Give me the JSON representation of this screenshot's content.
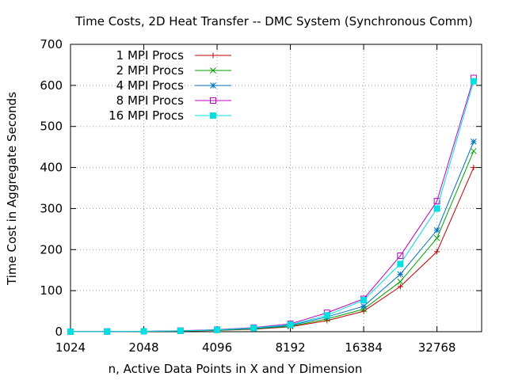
{
  "chart_data": {
    "type": "line",
    "title": "Time Costs, 2D Heat Transfer -- DMC System (Synchronous Comm)",
    "xlabel": "n, Active Data Points in X and Y Dimension",
    "ylabel": "Time Cost in Aggregate Seconds",
    "x_scale": "log2",
    "xlim": [
      1024,
      50000
    ],
    "ylim": [
      0,
      700
    ],
    "x_ticks": [
      1024,
      2048,
      4096,
      8192,
      16384,
      32768
    ],
    "x_tick_labels": [
      "1024",
      "2048",
      "4096",
      "8192",
      "16384",
      "32768"
    ],
    "y_ticks": [
      0,
      100,
      200,
      300,
      400,
      500,
      600,
      700
    ],
    "y_tick_labels": [
      "0",
      "100",
      "200",
      "300",
      "400",
      "500",
      "600",
      "700"
    ],
    "grid": true,
    "legend_position": "top-left",
    "x": [
      1024,
      1448,
      2048,
      2896,
      4096,
      5793,
      8192,
      11585,
      16384,
      23170,
      32768,
      46341
    ],
    "series": [
      {
        "name": "1 MPI Procs",
        "color": "#c00000",
        "marker": "plus",
        "values": [
          0.1,
          0.3,
          0.6,
          1.5,
          3,
          6,
          12,
          27,
          50,
          110,
          195,
          400
        ]
      },
      {
        "name": "2 MPI Procs",
        "color": "#00a000",
        "marker": "cross",
        "values": [
          0.1,
          0.3,
          0.7,
          1.7,
          3.5,
          7,
          13,
          31,
          55,
          122,
          228,
          440
        ]
      },
      {
        "name": "4 MPI Procs",
        "color": "#0070c0",
        "marker": "star",
        "values": [
          0.1,
          0.4,
          0.8,
          2,
          4,
          8,
          15,
          36,
          62,
          140,
          247,
          463
        ]
      },
      {
        "name": "8 MPI Procs",
        "color": "#c000c0",
        "marker": "square-open",
        "values": [
          0.1,
          0.5,
          1.0,
          2.5,
          5,
          10,
          19,
          46,
          80,
          185,
          318,
          618
        ]
      },
      {
        "name": "16 MPI Procs",
        "color": "#00e0e0",
        "marker": "square-filled",
        "values": [
          0.1,
          0.4,
          0.9,
          2.2,
          4.5,
          9,
          17,
          40,
          77,
          165,
          300,
          610
        ]
      }
    ]
  }
}
